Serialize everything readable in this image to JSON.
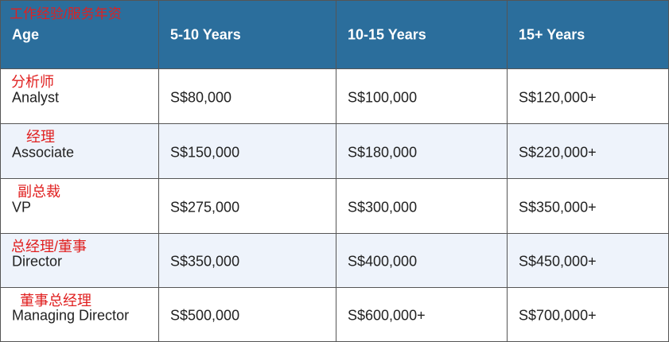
{
  "table": {
    "header": {
      "annotation": "工作经验/服务年资",
      "cells": [
        "Age",
        "5-10 Years",
        "10-15 Years",
        "15+ Years"
      ]
    },
    "rows": [
      {
        "annotation": "分析师",
        "cells": [
          "Analyst",
          "S$80,000",
          "S$100,000",
          "S$120,000+"
        ]
      },
      {
        "annotation": "经理",
        "cells": [
          "Associate",
          "S$150,000",
          "S$180,000",
          "S$220,000+"
        ]
      },
      {
        "annotation": "副总裁",
        "cells": [
          "VP",
          "S$275,000",
          "S$300,000",
          "S$350,000+"
        ]
      },
      {
        "annotation": "总经理/董事",
        "cells": [
          "Director",
          "S$350,000",
          "S$400,000",
          "S$450,000+"
        ]
      },
      {
        "annotation": "董事总经理",
        "cells": [
          "Managing Director",
          "S$500,000",
          "S$600,000+",
          "S$700,000+"
        ]
      }
    ]
  }
}
